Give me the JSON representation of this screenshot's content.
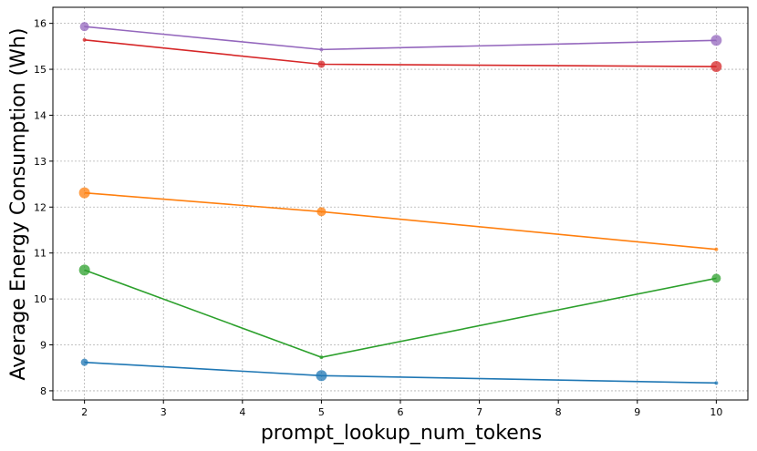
{
  "chart_data": {
    "type": "line",
    "title": "",
    "xlabel": "prompt_lookup_num_tokens",
    "ylabel": "Average Energy Consumption (Wh)",
    "xlim": [
      1.6,
      10.4
    ],
    "ylim": [
      7.8,
      16.35
    ],
    "x_ticks": [
      2,
      3,
      4,
      5,
      6,
      7,
      8,
      9,
      10
    ],
    "y_ticks": [
      8,
      9,
      10,
      11,
      12,
      13,
      14,
      15,
      16
    ],
    "grid": true,
    "legend": "none",
    "series": [
      {
        "color": "#9467bd",
        "x": [
          2,
          5,
          10
        ],
        "y": [
          15.93,
          15.43,
          15.63
        ],
        "marker_sizes": [
          5,
          2,
          6
        ]
      },
      {
        "color": "#d62728",
        "x": [
          2,
          5,
          10
        ],
        "y": [
          15.64,
          15.11,
          15.06
        ],
        "marker_sizes": [
          2,
          4,
          6
        ]
      },
      {
        "color": "#ff7f0e",
        "x": [
          2,
          5,
          10
        ],
        "y": [
          12.31,
          11.9,
          11.08
        ],
        "marker_sizes": [
          6,
          5,
          2
        ]
      },
      {
        "color": "#2ca02c",
        "x": [
          2,
          5,
          10
        ],
        "y": [
          10.63,
          8.73,
          10.45
        ],
        "marker_sizes": [
          6,
          2,
          5
        ]
      },
      {
        "color": "#1f77b4",
        "x": [
          2,
          5,
          10
        ],
        "y": [
          8.62,
          8.33,
          8.17
        ],
        "marker_sizes": [
          4,
          6,
          2
        ]
      }
    ]
  }
}
